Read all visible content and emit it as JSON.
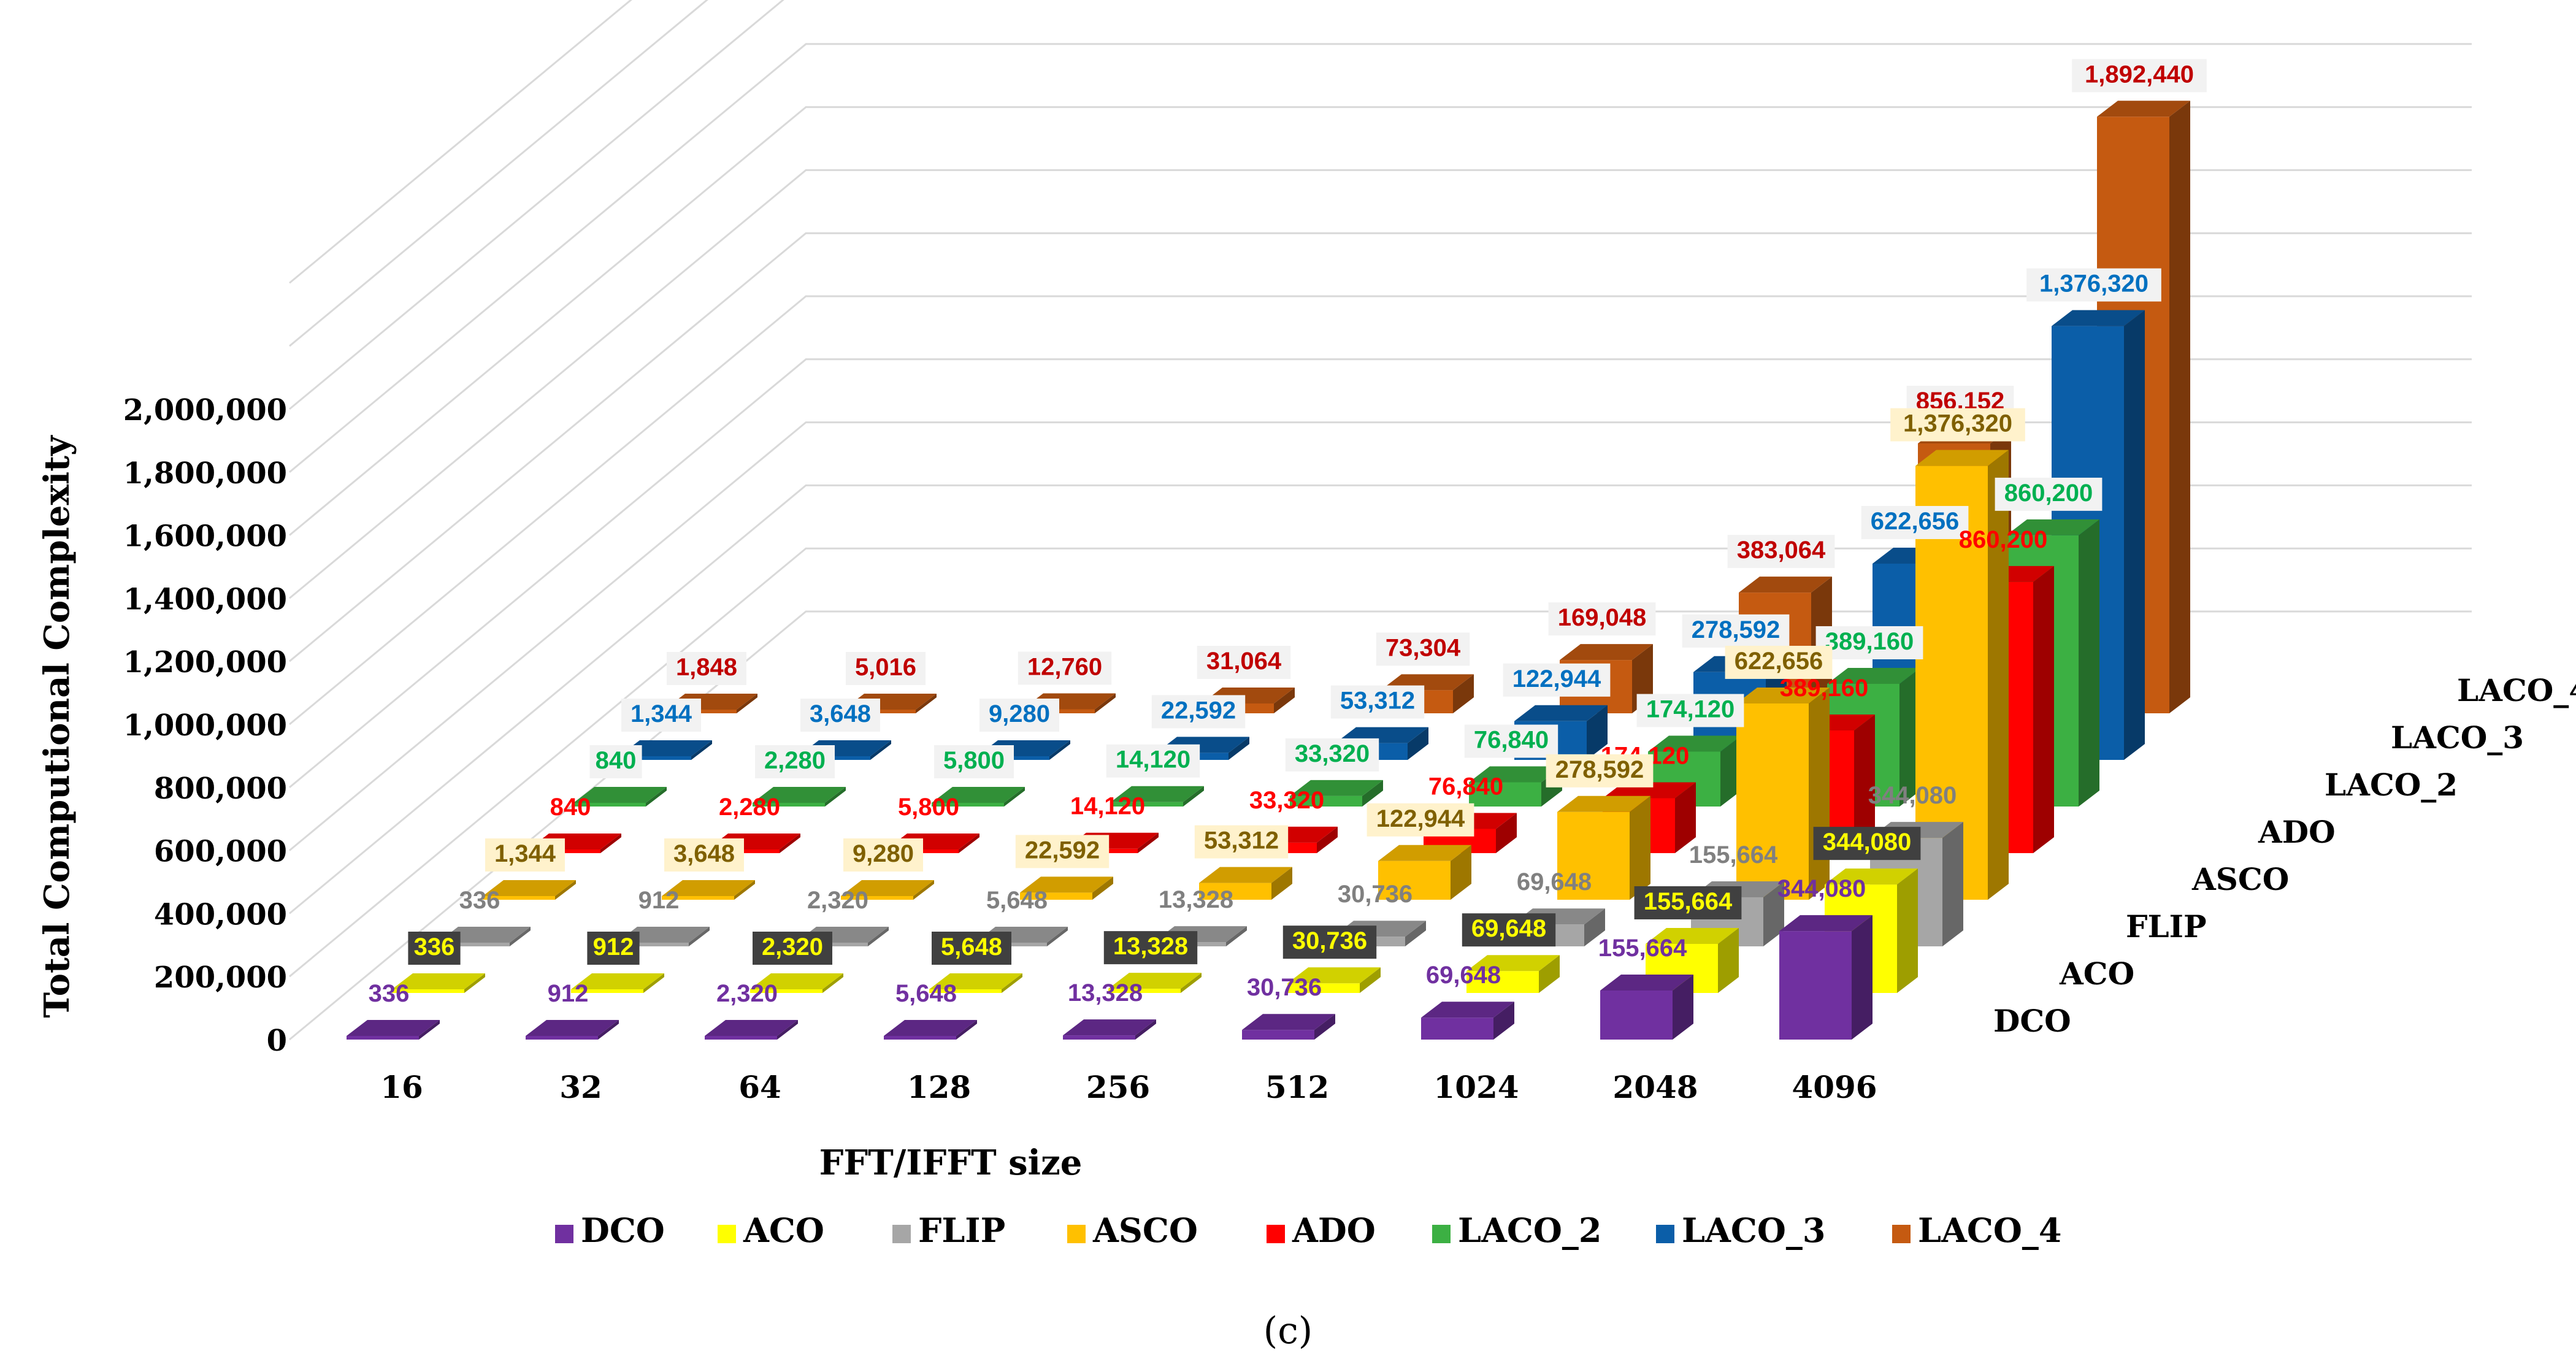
{
  "chart_data": {
    "type": "bar",
    "variant": "3d-clustered-column",
    "caption": "(c)",
    "xlabel": "FFT/IFFT size",
    "ylabel": "Total Computional Complexity",
    "categories": [
      "16",
      "32",
      "64",
      "128",
      "256",
      "512",
      "1024",
      "2048",
      "4096"
    ],
    "ylim": [
      0,
      2000000
    ],
    "yticks": [
      {
        "value": 0,
        "label": "0"
      },
      {
        "value": 200000,
        "label": "200,000"
      },
      {
        "value": 400000,
        "label": "400,000"
      },
      {
        "value": 600000,
        "label": "600,000"
      },
      {
        "value": 800000,
        "label": "800,000"
      },
      {
        "value": 1000000,
        "label": "1,000,000"
      },
      {
        "value": 1200000,
        "label": "1,200,000"
      },
      {
        "value": 1400000,
        "label": "1,400,000"
      },
      {
        "value": 1600000,
        "label": "1,600,000"
      },
      {
        "value": 1800000,
        "label": "1,800,000"
      },
      {
        "value": 2000000,
        "label": "2,000,000"
      }
    ],
    "grid": true,
    "legend_position": "bottom",
    "series": [
      {
        "name": "DCO",
        "color": "#7030a0",
        "labelColor": "#7030a0",
        "labelBg": "#ffffff",
        "values": [
          336,
          912,
          2320,
          5648,
          13328,
          30736,
          69648,
          155664,
          344080
        ],
        "labels": [
          "336",
          "912",
          "2,320",
          "5,648",
          "13,328",
          "30,736",
          "69,648",
          "155,664",
          "344,080"
        ]
      },
      {
        "name": "ACO",
        "color": "#ffff00",
        "labelColor": "#ffff00",
        "labelBg": "#404040",
        "values": [
          336,
          912,
          2320,
          5648,
          13328,
          30736,
          69648,
          155664,
          344080
        ],
        "labels": [
          "336",
          "912",
          "2,320",
          "5,648",
          "13,328",
          "30,736",
          "69,648",
          "155,664",
          "344,080"
        ]
      },
      {
        "name": "FLIP",
        "color": "#a6a6a6",
        "labelColor": "#808080",
        "labelBg": "#ffffff",
        "values": [
          336,
          912,
          2320,
          5648,
          13328,
          30736,
          69648,
          155664,
          344080
        ],
        "labels": [
          "336",
          "912",
          "2,320",
          "5,648",
          "13,328",
          "30,736",
          "69,648",
          "155,664",
          "344,080"
        ]
      },
      {
        "name": "ASCO",
        "color": "#ffc000",
        "labelColor": "#7f6000",
        "labelBg": "#fff2cc",
        "values": [
          1344,
          3648,
          9280,
          22592,
          53312,
          122944,
          278592,
          622656,
          1376320
        ],
        "labels": [
          "1,344",
          "3,648",
          "9,280",
          "22,592",
          "53,312",
          "122,944",
          "278,592",
          "622,656",
          "1,376,320"
        ]
      },
      {
        "name": "ADO",
        "color": "#ff0000",
        "labelColor": "#ff0000",
        "labelBg": "#ffffff",
        "values": [
          840,
          2280,
          5800,
          14120,
          33320,
          76840,
          174120,
          389160,
          860200
        ],
        "labels": [
          "840",
          "2,280",
          "5,800",
          "14,120",
          "33,320",
          "76,840",
          "174,120",
          "389,160",
          "860,200"
        ]
      },
      {
        "name": "LACO_2",
        "color": "#3cb043",
        "labelColor": "#00b050",
        "labelBg": "#f2f2f2",
        "values": [
          840,
          2280,
          5800,
          14120,
          33320,
          76840,
          174120,
          389160,
          860200
        ],
        "labels": [
          "840",
          "2,280",
          "5,800",
          "14,120",
          "33,320",
          "76,840",
          "174,120",
          "389,160",
          "860,200"
        ]
      },
      {
        "name": "LACO_3",
        "color": "#0b5ea8",
        "labelColor": "#0070c0",
        "labelBg": "#f2f2f2",
        "values": [
          1344,
          3648,
          9280,
          22592,
          53312,
          122944,
          278592,
          622656,
          1376320
        ],
        "labels": [
          "1,344",
          "3,648",
          "9,280",
          "22,592",
          "53,312",
          "122,944",
          "278,592",
          "622,656",
          "1,376,320"
        ]
      },
      {
        "name": "LACO_4",
        "color": "#c55a11",
        "labelColor": "#c00000",
        "labelBg": "#f2f2f2",
        "values": [
          1848,
          5016,
          12760,
          31064,
          73304,
          169048,
          383064,
          856152,
          1892440
        ],
        "labels": [
          "1,848",
          "5,016",
          "12,760",
          "31,064",
          "73,304",
          "169,048",
          "383,064",
          "856,152",
          "1,892,440"
        ]
      }
    ]
  }
}
